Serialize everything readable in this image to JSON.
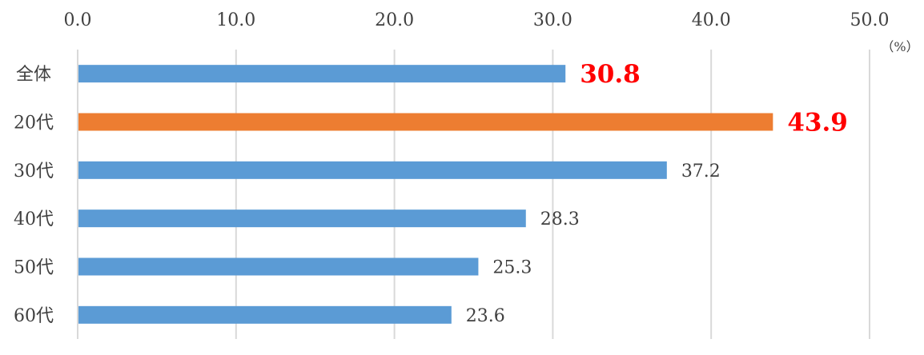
{
  "chart_data": {
    "type": "bar",
    "orientation": "horizontal",
    "categories": [
      "全体",
      "20代",
      "30代",
      "40代",
      "50代",
      "60代"
    ],
    "values": [
      30.8,
      43.9,
      37.2,
      28.3,
      25.3,
      23.6
    ],
    "value_labels": [
      "30.8",
      "43.9",
      "37.2",
      "28.3",
      "25.3",
      "23.6"
    ],
    "highlight": [
      true,
      true,
      false,
      false,
      false,
      false
    ],
    "bar_colors": [
      "#5b9bd5",
      "#ed7d31",
      "#5b9bd5",
      "#5b9bd5",
      "#5b9bd5",
      "#5b9bd5"
    ],
    "highlight_label_color": "#ff0000",
    "xlim": [
      0,
      50
    ],
    "xticks": [
      "0.0",
      "10.0",
      "20.0",
      "30.0",
      "40.0",
      "50.0"
    ],
    "x_axis_position": "top",
    "unit_label": "（%）",
    "grid": true,
    "grid_color": "#d9d9d9",
    "title": "",
    "xlabel": "",
    "ylabel": ""
  }
}
